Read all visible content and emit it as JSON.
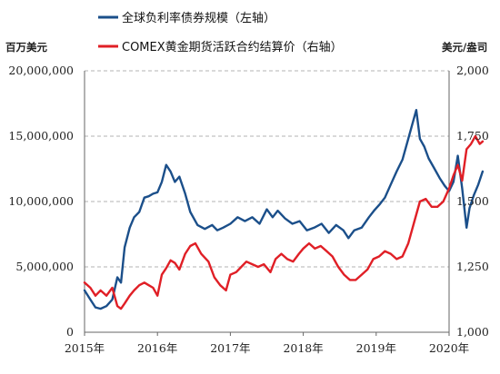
{
  "chart_data": {
    "type": "line",
    "legend": {
      "placement": "top-left"
    },
    "units": {
      "left": "百万美元",
      "right": "美元/盎司"
    },
    "x_axis": {
      "ticks": [
        2015,
        2016,
        2017,
        2018,
        2019,
        2020
      ],
      "tick_labels": [
        "2015年",
        "2016年",
        "2017年",
        "2018年",
        "2019年",
        "2020年"
      ],
      "range": [
        2015.0,
        2020.0
      ]
    },
    "y_left": {
      "ticks": [
        0,
        5000000,
        10000000,
        15000000,
        20000000
      ],
      "tick_labels": [
        "0",
        "5,000,000",
        "10,000,000",
        "15,000,000",
        "20,000,000"
      ],
      "range": [
        0,
        20000000
      ]
    },
    "y_right": {
      "ticks": [
        1000,
        1250,
        1500,
        1750,
        2000
      ],
      "tick_labels": [
        "1,000",
        "1,250",
        "1,500",
        "1,750",
        "2,000"
      ],
      "range": [
        1000,
        2000
      ]
    },
    "grid": {
      "horizontal": true,
      "style": "dashed"
    },
    "series": [
      {
        "name": "全球负利率债券规模（左轴）",
        "axis": "left",
        "color": "#1b4f8a",
        "points": [
          [
            2015.0,
            3200000
          ],
          [
            2015.08,
            2500000
          ],
          [
            2015.15,
            1900000
          ],
          [
            2015.22,
            1800000
          ],
          [
            2015.3,
            2000000
          ],
          [
            2015.38,
            2500000
          ],
          [
            2015.45,
            4200000
          ],
          [
            2015.5,
            3800000
          ],
          [
            2015.55,
            6500000
          ],
          [
            2015.62,
            8000000
          ],
          [
            2015.68,
            8800000
          ],
          [
            2015.75,
            9200000
          ],
          [
            2015.82,
            10300000
          ],
          [
            2015.88,
            10400000
          ],
          [
            2015.94,
            10600000
          ],
          [
            2016.0,
            10700000
          ],
          [
            2016.06,
            11500000
          ],
          [
            2016.12,
            12800000
          ],
          [
            2016.18,
            12300000
          ],
          [
            2016.24,
            11500000
          ],
          [
            2016.3,
            11900000
          ],
          [
            2016.38,
            10600000
          ],
          [
            2016.45,
            9200000
          ],
          [
            2016.55,
            8200000
          ],
          [
            2016.65,
            7900000
          ],
          [
            2016.75,
            8200000
          ],
          [
            2016.82,
            7800000
          ],
          [
            2016.9,
            8000000
          ],
          [
            2017.0,
            8300000
          ],
          [
            2017.1,
            8800000
          ],
          [
            2017.2,
            8500000
          ],
          [
            2017.3,
            8800000
          ],
          [
            2017.4,
            8300000
          ],
          [
            2017.5,
            9400000
          ],
          [
            2017.58,
            8800000
          ],
          [
            2017.65,
            9300000
          ],
          [
            2017.75,
            8700000
          ],
          [
            2017.85,
            8300000
          ],
          [
            2017.95,
            8500000
          ],
          [
            2018.05,
            7800000
          ],
          [
            2018.15,
            8000000
          ],
          [
            2018.25,
            8300000
          ],
          [
            2018.35,
            7600000
          ],
          [
            2018.45,
            8200000
          ],
          [
            2018.55,
            7800000
          ],
          [
            2018.62,
            7200000
          ],
          [
            2018.7,
            7800000
          ],
          [
            2018.8,
            8000000
          ],
          [
            2018.9,
            8800000
          ],
          [
            2018.97,
            9300000
          ],
          [
            2019.05,
            9800000
          ],
          [
            2019.12,
            10300000
          ],
          [
            2019.2,
            11300000
          ],
          [
            2019.28,
            12300000
          ],
          [
            2019.36,
            13200000
          ],
          [
            2019.44,
            14800000
          ],
          [
            2019.5,
            16000000
          ],
          [
            2019.55,
            17000000
          ],
          [
            2019.6,
            14800000
          ],
          [
            2019.66,
            14200000
          ],
          [
            2019.72,
            13300000
          ],
          [
            2019.8,
            12500000
          ],
          [
            2019.87,
            11800000
          ],
          [
            2019.94,
            11200000
          ],
          [
            2020.0,
            10800000
          ],
          [
            2020.06,
            11500000
          ],
          [
            2020.12,
            13500000
          ],
          [
            2020.18,
            11000000
          ],
          [
            2020.24,
            8000000
          ],
          [
            2020.28,
            9500000
          ],
          [
            2020.34,
            10500000
          ],
          [
            2020.4,
            11300000
          ],
          [
            2020.46,
            12300000
          ]
        ]
      },
      {
        "name": "COMEX黄金期货活跃合约结算价（右轴）",
        "axis": "right",
        "color": "#e01f26",
        "points": [
          [
            2015.0,
            1190
          ],
          [
            2015.08,
            1170
          ],
          [
            2015.15,
            1140
          ],
          [
            2015.22,
            1160
          ],
          [
            2015.3,
            1140
          ],
          [
            2015.38,
            1170
          ],
          [
            2015.45,
            1100
          ],
          [
            2015.5,
            1090
          ],
          [
            2015.55,
            1110
          ],
          [
            2015.62,
            1140
          ],
          [
            2015.68,
            1160
          ],
          [
            2015.75,
            1180
          ],
          [
            2015.82,
            1190
          ],
          [
            2015.88,
            1180
          ],
          [
            2015.94,
            1170
          ],
          [
            2016.0,
            1140
          ],
          [
            2016.06,
            1220
          ],
          [
            2016.12,
            1245
          ],
          [
            2016.18,
            1275
          ],
          [
            2016.24,
            1265
          ],
          [
            2016.3,
            1240
          ],
          [
            2016.38,
            1300
          ],
          [
            2016.45,
            1330
          ],
          [
            2016.52,
            1340
          ],
          [
            2016.6,
            1300
          ],
          [
            2016.7,
            1270
          ],
          [
            2016.78,
            1210
          ],
          [
            2016.86,
            1180
          ],
          [
            2016.94,
            1160
          ],
          [
            2017.0,
            1220
          ],
          [
            2017.08,
            1230
          ],
          [
            2017.15,
            1250
          ],
          [
            2017.22,
            1270
          ],
          [
            2017.3,
            1260
          ],
          [
            2017.38,
            1250
          ],
          [
            2017.46,
            1260
          ],
          [
            2017.55,
            1230
          ],
          [
            2017.62,
            1280
          ],
          [
            2017.7,
            1300
          ],
          [
            2017.78,
            1280
          ],
          [
            2017.86,
            1270
          ],
          [
            2017.94,
            1300
          ],
          [
            2018.0,
            1320
          ],
          [
            2018.08,
            1340
          ],
          [
            2018.16,
            1320
          ],
          [
            2018.24,
            1330
          ],
          [
            2018.32,
            1310
          ],
          [
            2018.4,
            1290
          ],
          [
            2018.48,
            1250
          ],
          [
            2018.56,
            1220
          ],
          [
            2018.64,
            1200
          ],
          [
            2018.72,
            1200
          ],
          [
            2018.8,
            1220
          ],
          [
            2018.88,
            1240
          ],
          [
            2018.96,
            1280
          ],
          [
            2019.04,
            1290
          ],
          [
            2019.12,
            1310
          ],
          [
            2019.2,
            1300
          ],
          [
            2019.28,
            1280
          ],
          [
            2019.36,
            1290
          ],
          [
            2019.44,
            1340
          ],
          [
            2019.52,
            1420
          ],
          [
            2019.6,
            1500
          ],
          [
            2019.68,
            1510
          ],
          [
            2019.76,
            1480
          ],
          [
            2019.84,
            1480
          ],
          [
            2019.92,
            1500
          ],
          [
            2020.0,
            1550
          ],
          [
            2020.06,
            1600
          ],
          [
            2020.12,
            1640
          ],
          [
            2020.18,
            1580
          ],
          [
            2020.24,
            1700
          ],
          [
            2020.3,
            1720
          ],
          [
            2020.36,
            1750
          ],
          [
            2020.42,
            1720
          ],
          [
            2020.46,
            1730
          ]
        ]
      }
    ]
  }
}
